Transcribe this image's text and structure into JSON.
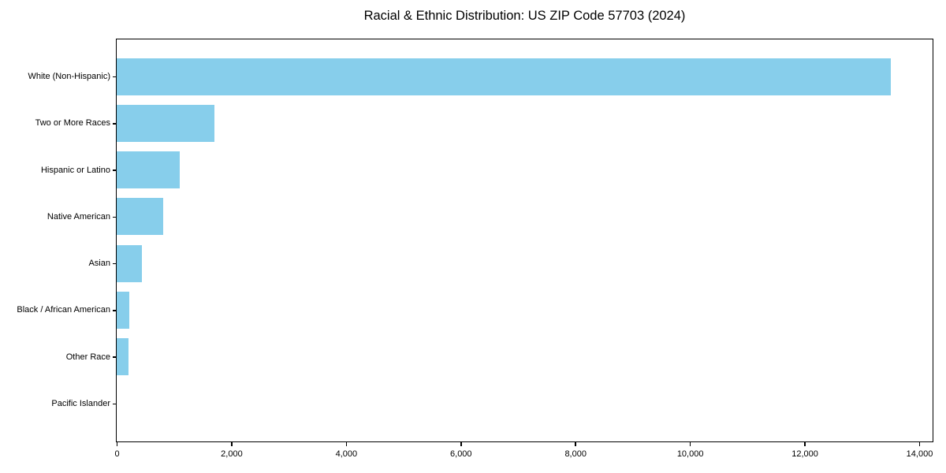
{
  "chart_data": {
    "type": "bar",
    "orientation": "horizontal",
    "title": "Racial & Ethnic Distribution: US ZIP Code 57703 (2024)",
    "categories": [
      "White (Non-Hispanic)",
      "Two or More Races",
      "Hispanic or Latino",
      "Native American",
      "Asian",
      "Black / African American",
      "Other Race",
      "Pacific Islander"
    ],
    "values": [
      13500,
      1700,
      1100,
      810,
      440,
      220,
      200,
      0
    ],
    "xlabel": "",
    "ylabel": "",
    "xlim": [
      0,
      14220
    ],
    "xticks": [
      0,
      2000,
      4000,
      6000,
      8000,
      10000,
      12000,
      14000
    ],
    "xtick_labels": [
      "0",
      "2,000",
      "4,000",
      "6,000",
      "8,000",
      "10,000",
      "12,000",
      "14,000"
    ],
    "bar_color": "#87CEEB",
    "axis_color": "#000000",
    "grid": false,
    "legend": false
  }
}
